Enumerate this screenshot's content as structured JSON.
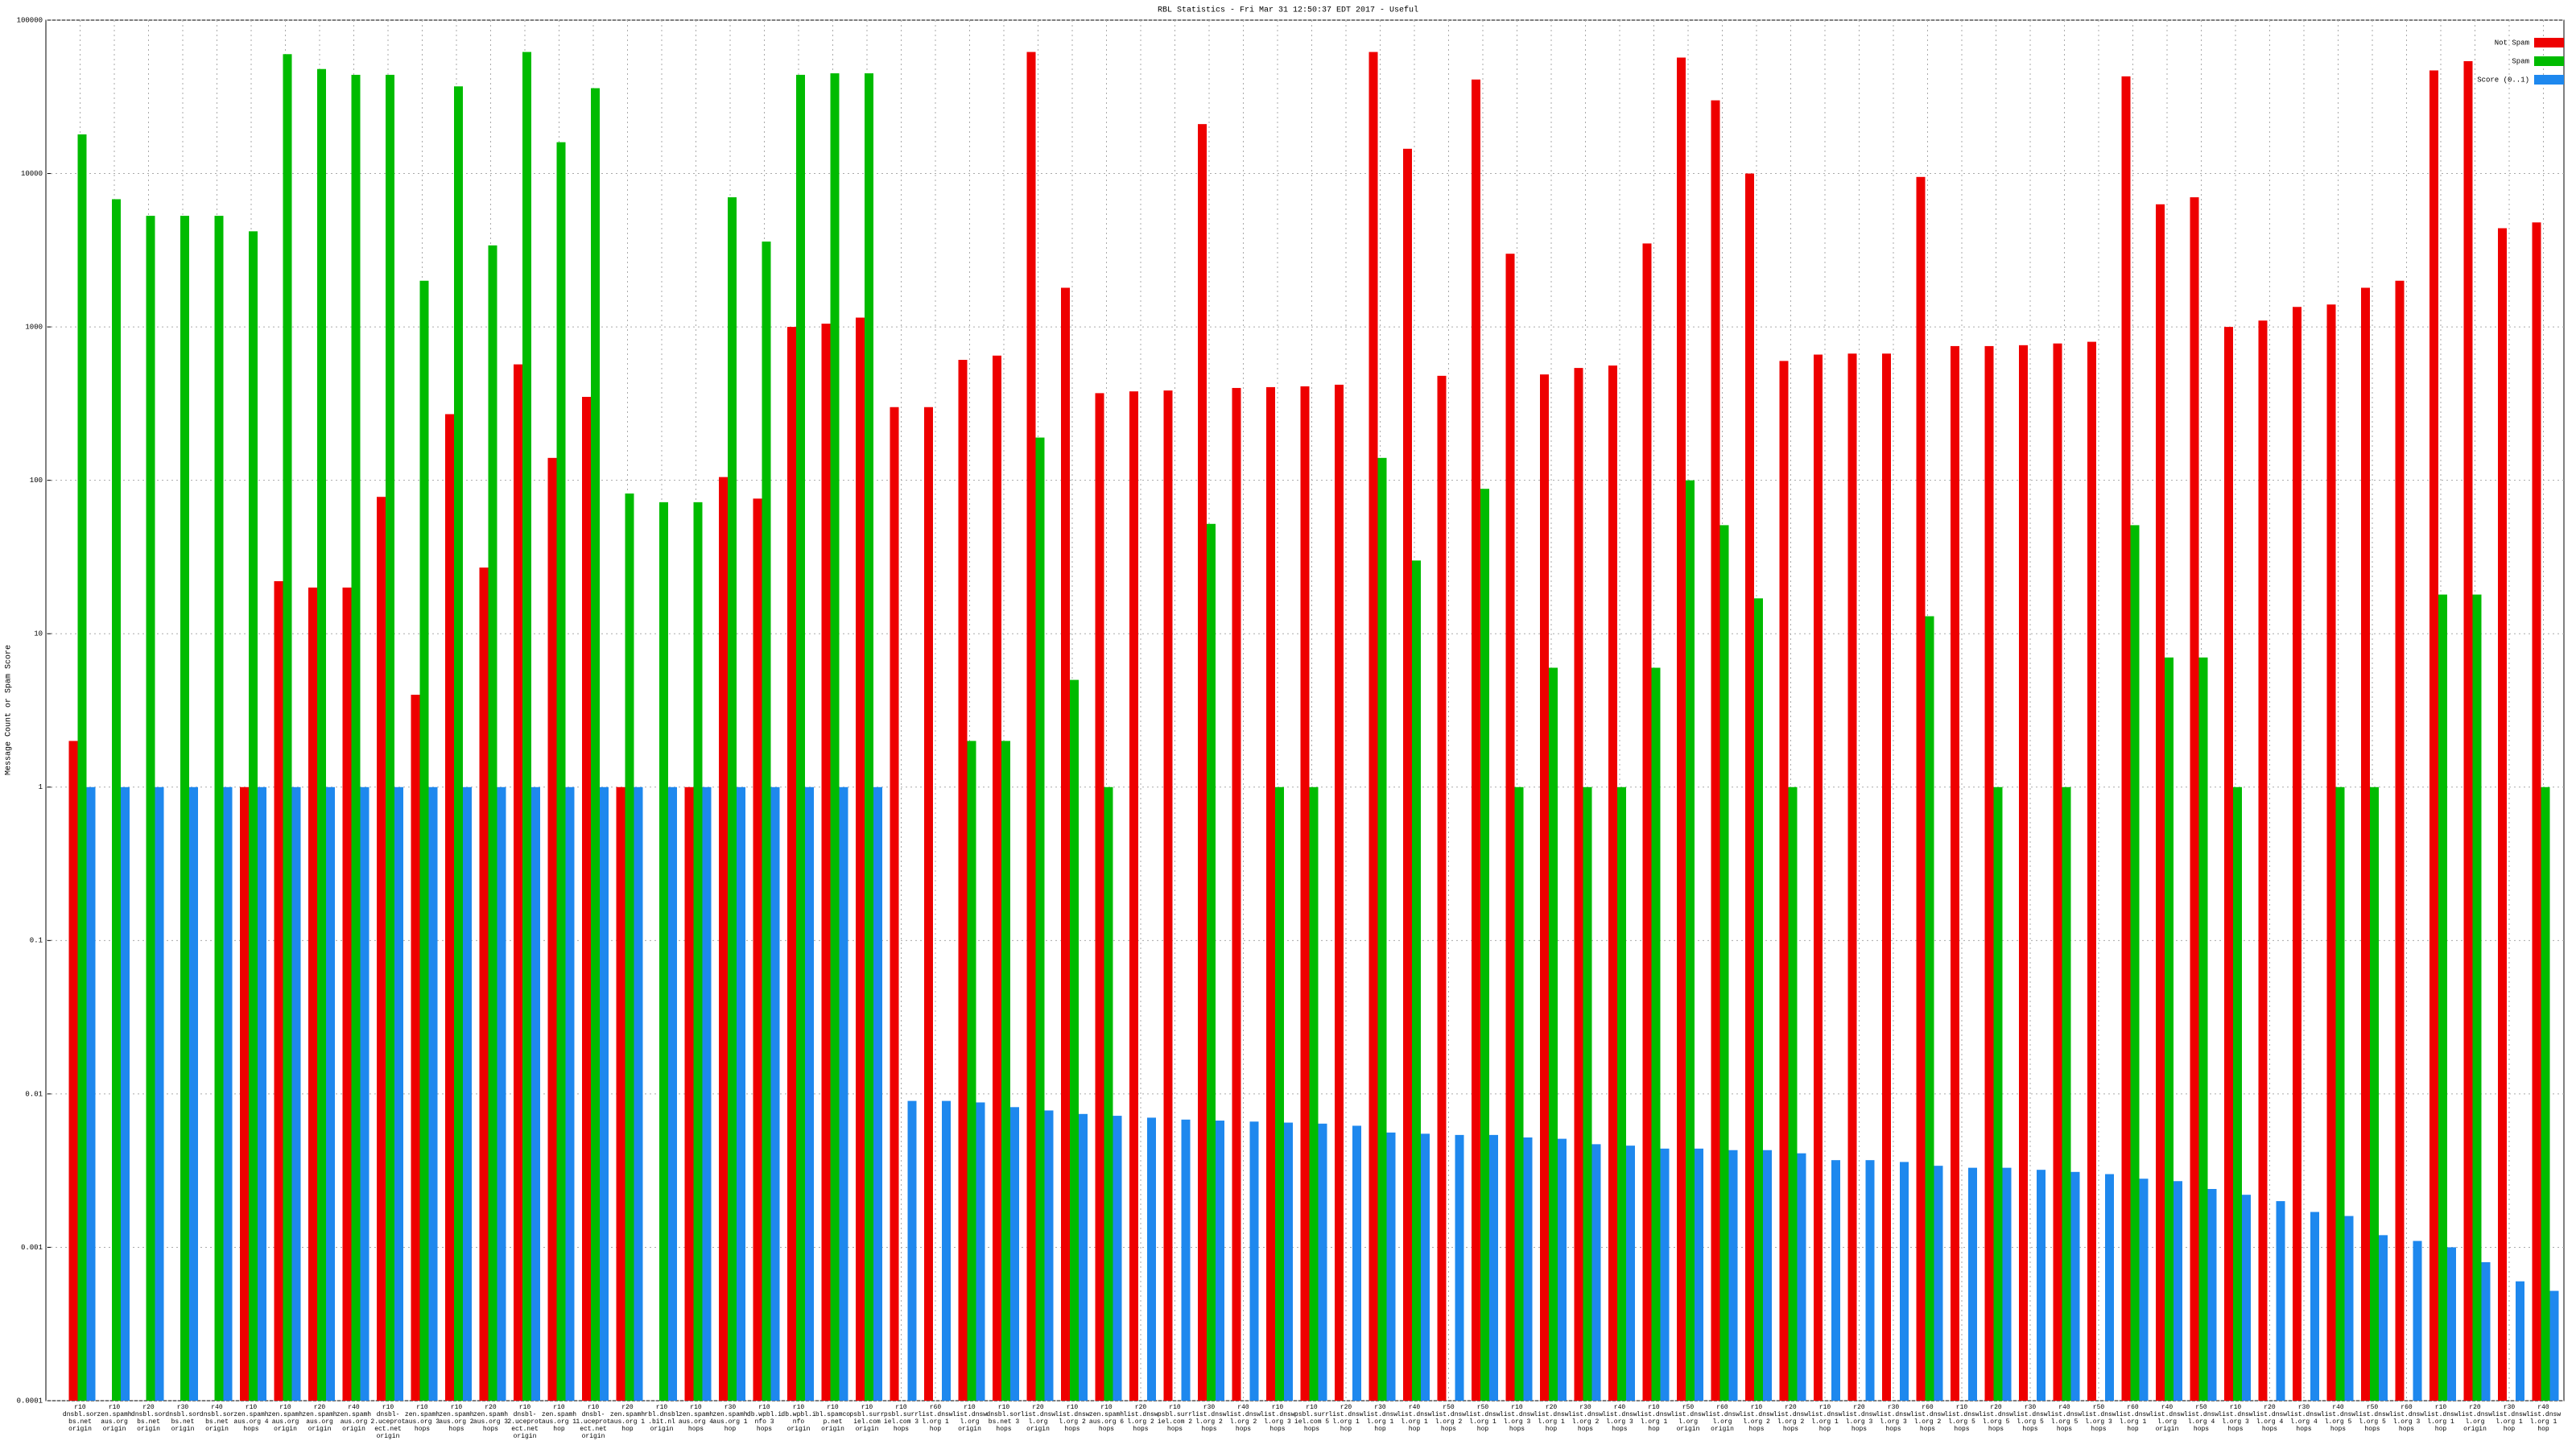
{
  "chart_data": {
    "type": "bar",
    "title": "RBL Statistics - Fri Mar 31 12:50:37 EDT 2017 - Useful",
    "ylabel": "Message Count or Spam Score",
    "log_scale": true,
    "grid": true,
    "legend": "upper right",
    "ylim": [
      0.0001,
      100000
    ],
    "yticks": [
      0.0001,
      0.001,
      0.01,
      0.1,
      1,
      10,
      100,
      1000,
      10000,
      100000
    ],
    "categories": [
      "r10 dnsbl.sorbs.net origin",
      "r10 zen.spamhaus.org origin",
      "r20 dnsbl.sorbs.net origin",
      "r30 dnsbl.sorbs.net origin",
      "r40 dnsbl.sorbs.net origin",
      "r10 zen.spamhaus.org 4 hops",
      "r10 zen.spamhaus.org origin",
      "r20 zen.spamhaus.org origin",
      "r40 zen.spamhaus.org origin",
      "r10 dnsbl-2.uceprotect.net origin",
      "r10 zen.spamhaus.org 3 hops",
      "r10 zen.spamhaus.org 2 hops",
      "r20 zen.spamhaus.org 3 hops",
      "r10 dnsbl-2.uceprotect.net origin",
      "r10 zen.spamhaus.org 1 hop",
      "r10 dnsbl-1.uceprotect.net origin",
      "r20 zen.spamhaus.org 1 hop",
      "r10 rbl.dnsbl.bit.nl origin",
      "r10 zen.spamhaus.org 4 hops",
      "r30 zen.spamhaus.org 1 hop",
      "r10 db.wpbl.info 3 hops",
      "r10 db.wpbl.info origin",
      "r10 bl.spamcop.net origin",
      "r10 psbl.surriel.com origin",
      "r10 psbl.surriel.com 3 hops",
      "r60 list.dnswl.org 1 hop",
      "r10 list.dnswl.org origin",
      "r10 dnsbl.sorbs.net 3 hops",
      "r20 list.dnswl.org origin",
      "r10 list.dnswl.org 2 hops",
      "r10 zen.spamhaus.org 6 hops",
      "r20 list.dnswl.org 2 hops",
      "r10 psbl.surriel.com 2 hops",
      "r30 list.dnswl.org 2 hops",
      "r40 list.dnswl.org 2 hops",
      "r10 list.dnswl.org 3 hops",
      "r10 psbl.surriel.com 5 hops",
      "r20 list.dnswl.org 1 hop",
      "r30 list.dnswl.org 1 hop",
      "r40 list.dnswl.org 1 hop",
      "r50 list.dnswl.org 2 hops",
      "r50 list.dnswl.org 1 hop",
      "r10 list.dnswl.org 3 hops",
      "r20 list.dnswl.org 1 hop",
      "r30 list.dnswl.org 2 hops",
      "r40 list.dnswl.org 3 hops",
      "r10 list.dnswl.org 1 hop",
      "r50 list.dnswl.org origin",
      "r60 list.dnswl.org origin",
      "r10 list.dnswl.org 2 hops",
      "r20 list.dnswl.org 2 hops",
      "r10 list.dnswl.org 1 hop",
      "r20 list.dnswl.org 3 hops",
      "r30 list.dnswl.org 3 hops",
      "r60 list.dnswl.org 2 hops",
      "r10 list.dnswl.org 5 hops",
      "r20 list.dnswl.org 5 hops",
      "r30 list.dnswl.org 5 hops",
      "r40 list.dnswl.org 5 hops",
      "r50 list.dnswl.org 3 hops",
      "r60 list.dnswl.org 1 hop",
      "r40 list.dnswl.org origin",
      "r50 list.dnswl.org 4 hops",
      "r10 list.dnswl.org 3 hops",
      "r20 list.dnswl.org 4 hops",
      "r30 list.dnswl.org 4 hops",
      "r40 list.dnswl.org 5 hops",
      "r50 list.dnswl.org 5 hops",
      "r60 list.dnswl.org 3 hops",
      "r10 list.dnswl.org 1 hop",
      "r20 list.dnswl.org origin",
      "r30 list.dnswl.org 1 hop",
      "r40 list.dnswl.org 1 hop"
    ],
    "series": [
      {
        "name": "Not Spam",
        "color": "#ee0000",
        "values": [
          2,
          null,
          null,
          null,
          null,
          1,
          22,
          20,
          20,
          78,
          4,
          270,
          27,
          570,
          140,
          350,
          1,
          null,
          1,
          105,
          76,
          1000,
          1050,
          1150,
          300,
          300,
          610,
          650,
          62000,
          1800,
          370,
          380,
          385,
          21000,
          400,
          405,
          410,
          420,
          62000,
          14500,
          480,
          41000,
          3000,
          490,
          540,
          560,
          3500,
          57000,
          30000,
          10000,
          600,
          660,
          670,
          670,
          9500,
          750,
          750,
          760,
          780,
          800,
          43000,
          6300,
          7000,
          1000,
          1100,
          1350,
          1400,
          1800,
          2000,
          47000,
          54000,
          4400,
          4800
        ]
      },
      {
        "name": "Spam",
        "color": "#00bb00",
        "values": [
          18000,
          6800,
          5300,
          5300,
          5300,
          4200,
          60000,
          48000,
          44000,
          44000,
          2000,
          37000,
          3400,
          62000,
          16000,
          36000,
          82,
          72,
          72,
          7000,
          3600,
          44000,
          45000,
          45000,
          null,
          null,
          2,
          2,
          190,
          5,
          1,
          null,
          null,
          52,
          null,
          1,
          1,
          null,
          140,
          30,
          null,
          88,
          1,
          6,
          1,
          1,
          6,
          100,
          51,
          17,
          1,
          null,
          null,
          null,
          13,
          null,
          1,
          null,
          1,
          null,
          51,
          7,
          7,
          1,
          null,
          null,
          1,
          1,
          null,
          18,
          18,
          null,
          1
        ]
      },
      {
        "name": "Score (0..1)",
        "color": "#1e88ee",
        "values": [
          1,
          1,
          1,
          1,
          1,
          1,
          1,
          1,
          1,
          1,
          1,
          1,
          1,
          1,
          1,
          1,
          1,
          1,
          1,
          1,
          1,
          1,
          1,
          1,
          0.009,
          0.009,
          0.0088,
          0.0082,
          0.0078,
          0.0074,
          0.0072,
          0.007,
          0.0068,
          0.0067,
          0.0066,
          0.0065,
          0.0064,
          0.0062,
          0.0056,
          0.0055,
          0.0054,
          0.0054,
          0.0052,
          0.0051,
          0.0047,
          0.0046,
          0.0044,
          0.0044,
          0.0043,
          0.0043,
          0.0041,
          0.0037,
          0.0037,
          0.0036,
          0.0034,
          0.0033,
          0.0033,
          0.0032,
          0.0031,
          0.003,
          0.0028,
          0.0027,
          0.0024,
          0.0022,
          0.002,
          0.0017,
          0.0016,
          0.0012,
          0.0011,
          0.001,
          0.0008,
          0.0006,
          0.00052
        ]
      }
    ]
  }
}
